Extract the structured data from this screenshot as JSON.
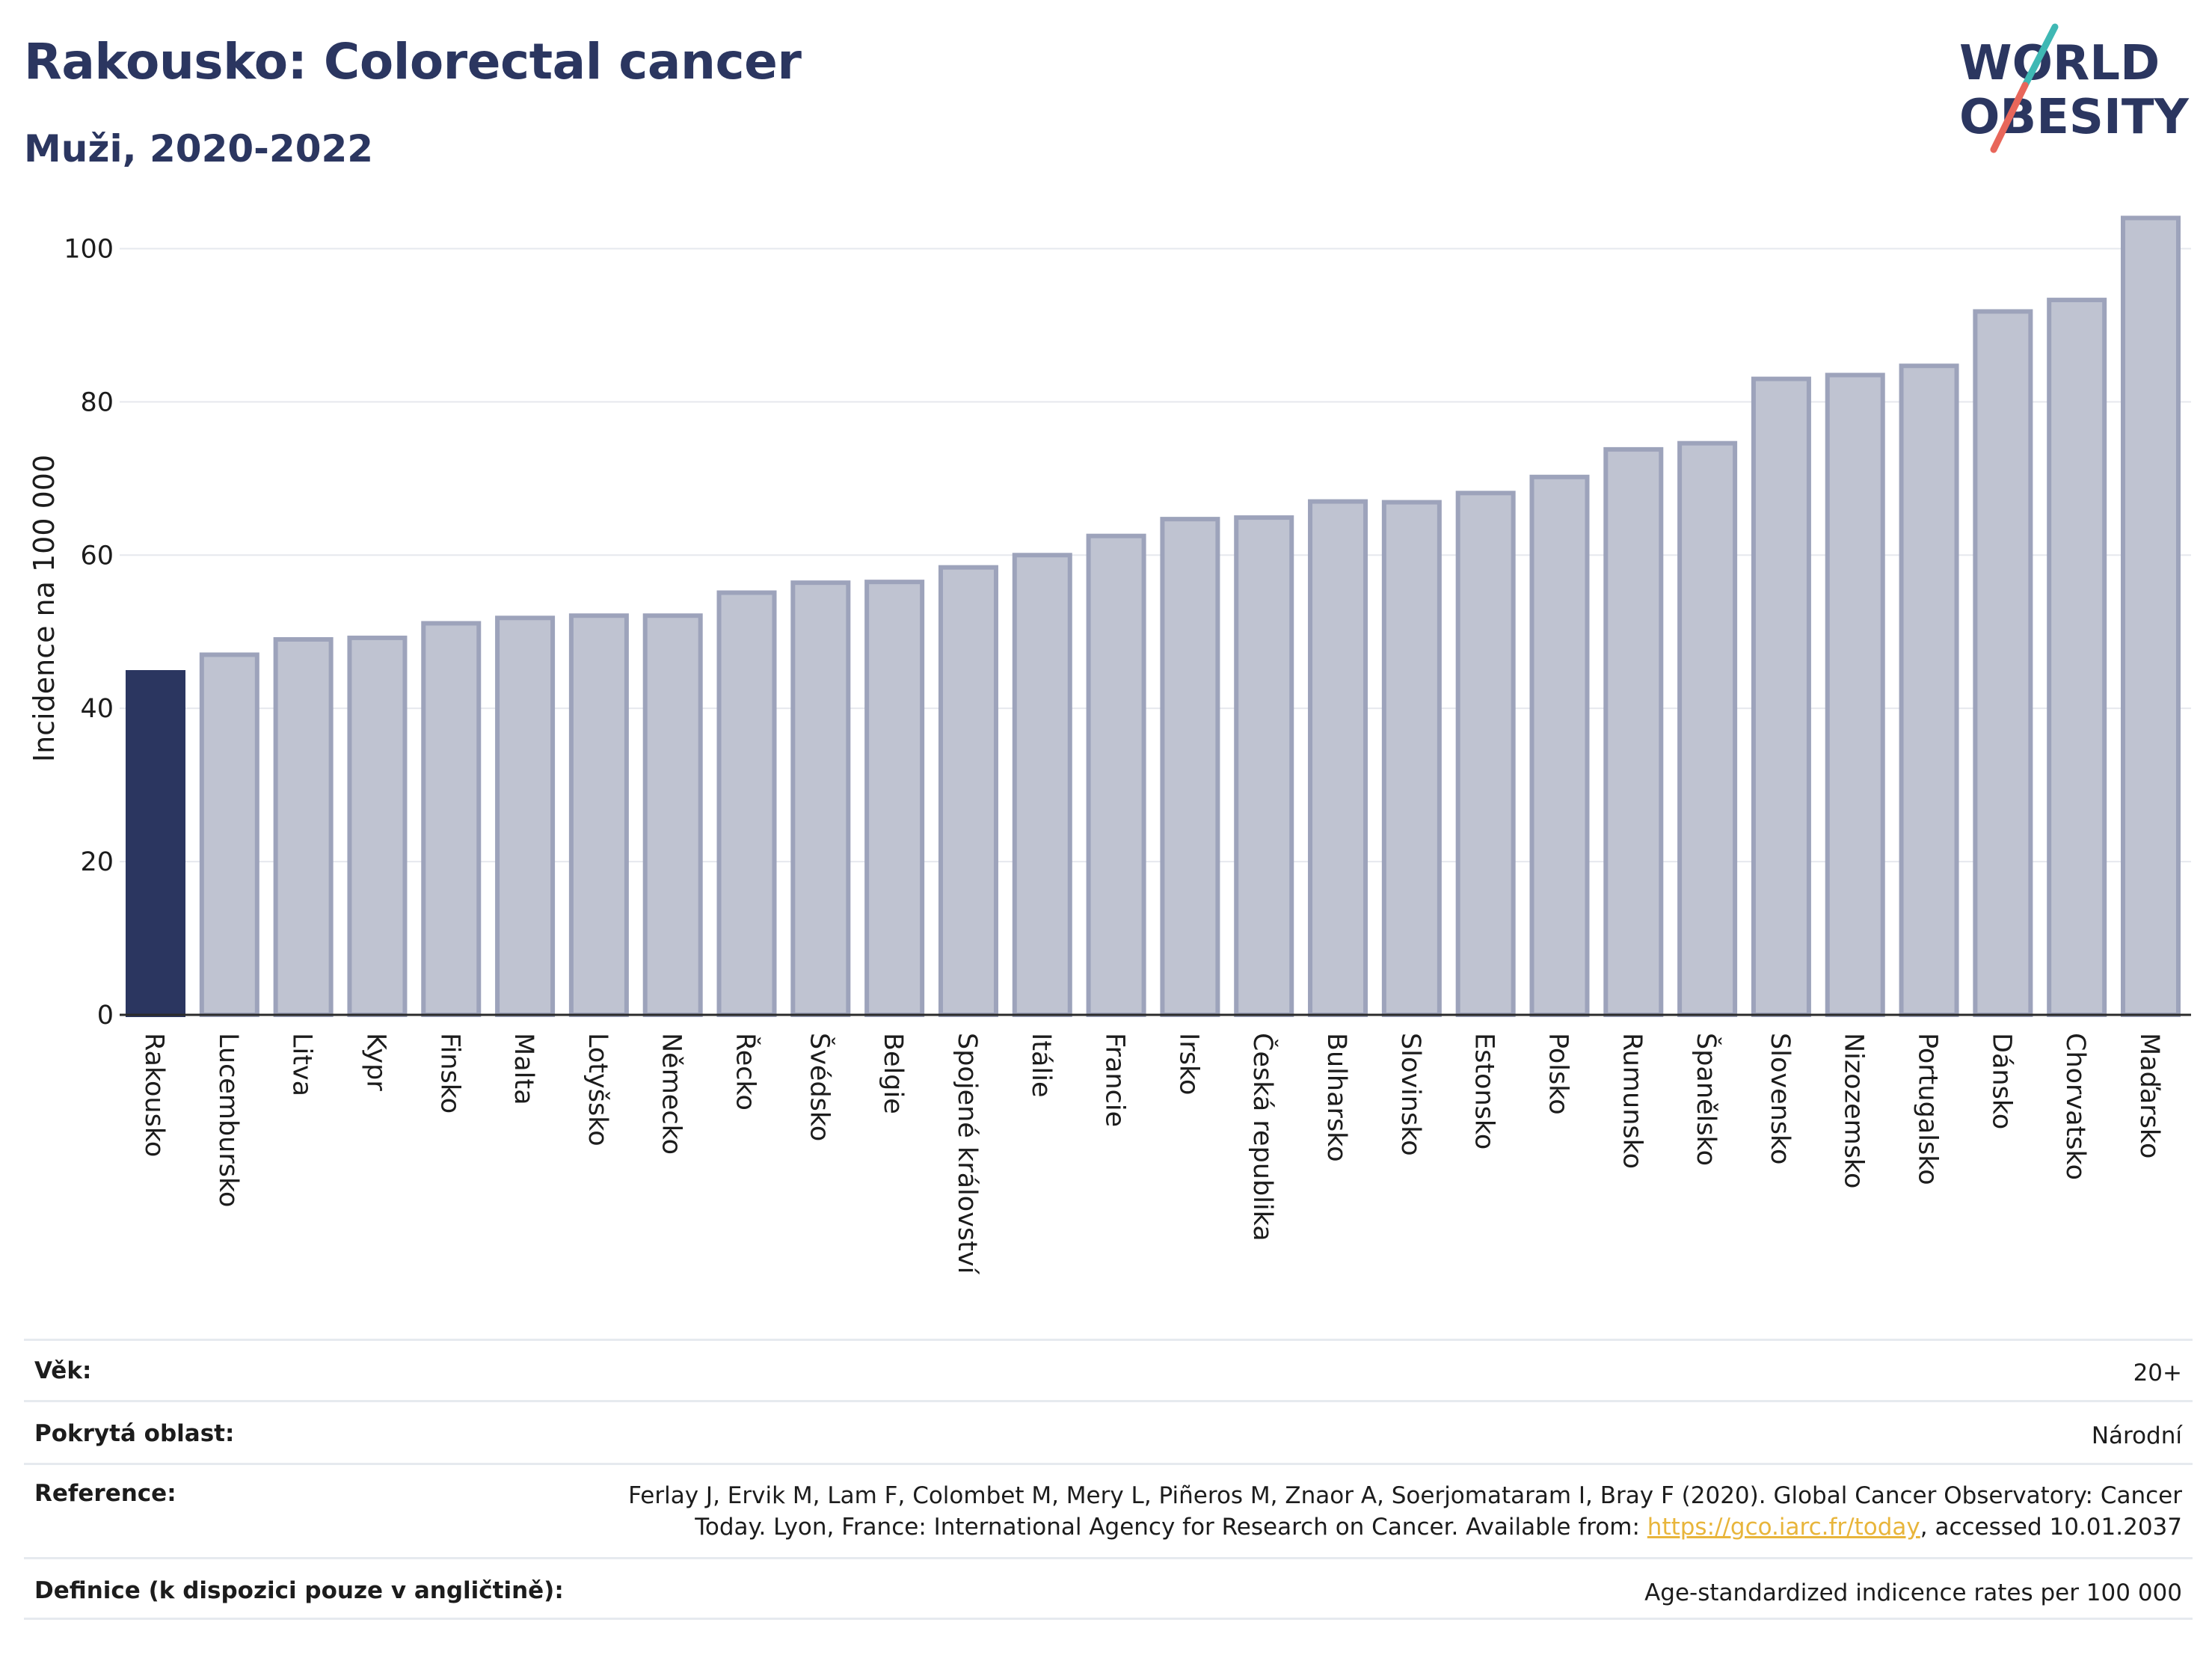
{
  "title": "Rakousko: Colorectal cancer",
  "subtitle": "Muži, 2020-2022",
  "logo": {
    "line1": "WORLD",
    "line2": "OBESITY",
    "accent_teal": "#3fb8b4",
    "accent_red": "#e8665a"
  },
  "colors": {
    "highlight": "#2b3660",
    "bar_fill": "#bfc3d1",
    "bar_stroke": "#9da3bb",
    "grid": "#e6e8ee",
    "axis": "#2b2b2b"
  },
  "chart_data": {
    "type": "bar",
    "title": "Rakousko: Colorectal cancer",
    "subtitle": "Muži, 2020-2022",
    "ylabel": "Incidence na 100 000",
    "ylim": [
      0,
      110
    ],
    "yticks": [
      0,
      20,
      40,
      60,
      80,
      100
    ],
    "grid": true,
    "highlight": "Rakousko",
    "categories": [
      "Rakousko",
      "Lucembursko",
      "Litva",
      "Kypr",
      "Finsko",
      "Malta",
      "Lotyšsko",
      "Německo",
      "Řecko",
      "Švédsko",
      "Belgie",
      "Spojené království",
      "Itálie",
      "Francie",
      "Irsko",
      "Česká republika",
      "Bulharsko",
      "Slovinsko",
      "Estonsko",
      "Polsko",
      "Rumunsko",
      "Španělsko",
      "Slovensko",
      "Nizozemsko",
      "Portugalsko",
      "Dánsko",
      "Chorvatsko",
      "Maďarsko"
    ],
    "values": [
      44.7,
      47.0,
      49.0,
      49.2,
      51.1,
      51.8,
      52.1,
      52.1,
      55.1,
      56.4,
      56.5,
      58.4,
      60.0,
      62.5,
      64.7,
      64.9,
      67.0,
      66.9,
      68.1,
      70.2,
      73.8,
      74.6,
      83.0,
      83.5,
      84.7,
      91.8,
      93.3,
      104.0
    ]
  },
  "info": {
    "age_label": "Věk:",
    "age_value": "20+",
    "area_label": "Pokrytá oblast:",
    "area_value": "Národní",
    "reference_label": "Reference:",
    "reference_text_1": "Ferlay J, Ervik M, Lam F, Colombet M, Mery L, Piñeros M, Znaor A, Soerjomataram I, Bray F (2020). Global Cancer Observatory: Cancer",
    "reference_text_2": "Today. Lyon, France: International Agency for Research on Cancer. Available from: ",
    "reference_link": "https://gco.iarc.fr/today",
    "reference_text_3": ", accessed 10.01.2037",
    "definition_label": "Definice (k dispozici pouze v angličtině):",
    "definition_value": "Age-standardized indicence rates per 100 000"
  }
}
